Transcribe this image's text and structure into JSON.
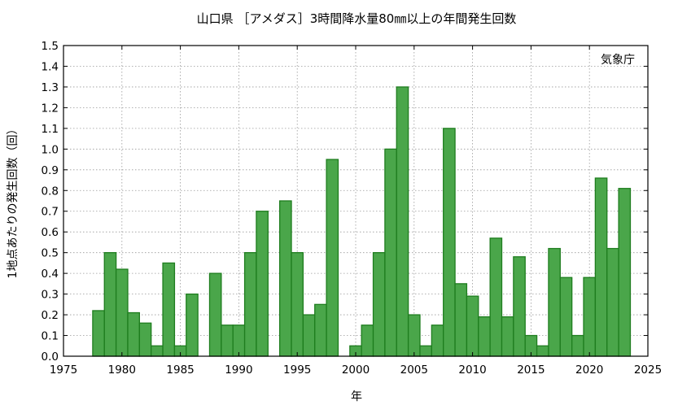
{
  "chart_data": {
    "type": "bar",
    "title": "山口県 ［アメダス］3時間降水量80㎜以上の年間発生回数",
    "xlabel": "年",
    "ylabel": "1地点あたりの発生回数（回）",
    "credit": "気象庁",
    "xlim": [
      1975,
      2025
    ],
    "ylim": [
      0,
      1.5
    ],
    "x_ticks": [
      "1975",
      "1980",
      "1985",
      "1990",
      "1995",
      "2000",
      "2005",
      "2010",
      "2015",
      "2020",
      "2025"
    ],
    "y_ticks": [
      "0.0",
      "0.1",
      "0.2",
      "0.3",
      "0.4",
      "0.5",
      "0.6",
      "0.7",
      "0.8",
      "0.9",
      "1.0",
      "1.1",
      "1.2",
      "1.3",
      "1.4",
      "1.5"
    ],
    "grid": true,
    "bar_color": "#4aa64a",
    "bar_edge_color": "#1e7d1e",
    "years": [
      1976,
      1977,
      1978,
      1979,
      1980,
      1981,
      1982,
      1983,
      1984,
      1985,
      1986,
      1987,
      1988,
      1989,
      1990,
      1991,
      1992,
      1993,
      1994,
      1995,
      1996,
      1997,
      1998,
      1999,
      2000,
      2001,
      2002,
      2003,
      2004,
      2005,
      2006,
      2007,
      2008,
      2009,
      2010,
      2011,
      2012,
      2013,
      2014,
      2015,
      2016,
      2017,
      2018,
      2019,
      2020,
      2021,
      2022,
      2023,
      2024
    ],
    "values": [
      0,
      0,
      0.22,
      0.5,
      0.42,
      0.21,
      0.16,
      0.05,
      0.45,
      0.05,
      0.3,
      0,
      0.4,
      0.15,
      0.15,
      0.5,
      0.7,
      0,
      0.75,
      0.5,
      0.2,
      0.25,
      0.95,
      0,
      0.05,
      0.15,
      0.5,
      1.0,
      1.3,
      0.2,
      0.05,
      0.15,
      1.1,
      0.35,
      0.29,
      0.19,
      0.57,
      0.19,
      0.48,
      0.1,
      0.05,
      0.52,
      0.38,
      0.1,
      0.38,
      0.86,
      0.52,
      0.81,
      0
    ]
  }
}
